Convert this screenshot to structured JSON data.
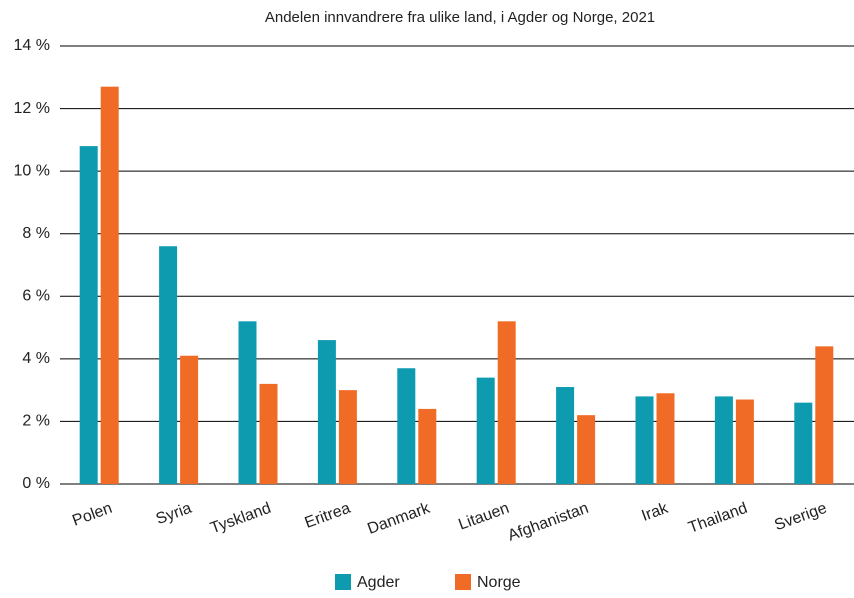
{
  "chart_data": {
    "type": "bar",
    "title": "Andelen innvandrere fra ulike land, i Agder og Norge, 2021",
    "categories": [
      "Polen",
      "Syria",
      "Tyskland",
      "Eritrea",
      "Danmark",
      "Litauen",
      "Afghanistan",
      "Irak",
      "Thailand",
      "Sverige"
    ],
    "series": [
      {
        "name": "Agder",
        "color": "#0e9bb0",
        "values": [
          10.8,
          7.6,
          5.2,
          4.6,
          3.7,
          3.4,
          3.1,
          2.8,
          2.8,
          2.6
        ]
      },
      {
        "name": "Norge",
        "color": "#f06b25",
        "values": [
          12.7,
          4.1,
          3.2,
          3.0,
          2.4,
          5.2,
          2.2,
          2.9,
          2.7,
          4.4
        ]
      }
    ],
    "ylim": [
      0,
      14
    ],
    "yticks": [
      {
        "value": 0,
        "label": "0 %"
      },
      {
        "value": 2,
        "label": "2 %"
      },
      {
        "value": 4,
        "label": "4 %"
      },
      {
        "value": 6,
        "label": "6 %"
      },
      {
        "value": 8,
        "label": "8 %"
      },
      {
        "value": 10,
        "label": "10 %"
      },
      {
        "value": 12,
        "label": "12 %"
      },
      {
        "value": 14,
        "label": "14 %"
      }
    ],
    "grid": true,
    "legend": "bottom"
  }
}
